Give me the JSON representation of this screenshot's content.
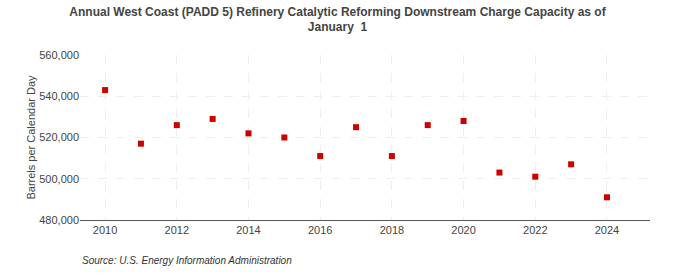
{
  "chart_data": {
    "type": "scatter",
    "title": "Annual West Coast (PADD 5) Refinery Catalytic Reforming Downstream Charge Capacity as of\nJanuary  1",
    "ylabel": "Barrels per Calendar Day",
    "annotations": [
      "Source: U.S. Energy Information Administration"
    ],
    "x": [
      2010,
      2011,
      2012,
      2013,
      2014,
      2015,
      2016,
      2017,
      2018,
      2019,
      2020,
      2021,
      2022,
      2023,
      2024
    ],
    "values": [
      543000,
      517000,
      526000,
      529000,
      522000,
      520000,
      511000,
      525000,
      511000,
      526000,
      528000,
      503000,
      501000,
      507000,
      491000
    ],
    "color": "#cc0000",
    "marker": "square",
    "xlim": [
      2009.3,
      2025.2
    ],
    "xticks": [
      2010,
      2012,
      2014,
      2016,
      2018,
      2020,
      2022,
      2024
    ],
    "ylim": [
      480000,
      560000
    ],
    "yticks": [
      {
        "value": 480000,
        "label": "480,000"
      },
      {
        "value": 500000,
        "label": "500,000"
      },
      {
        "value": 520000,
        "label": "520,000"
      },
      {
        "value": 540000,
        "label": "540,000"
      },
      {
        "value": 560000,
        "label": "560,000"
      }
    ],
    "grid": true
  }
}
